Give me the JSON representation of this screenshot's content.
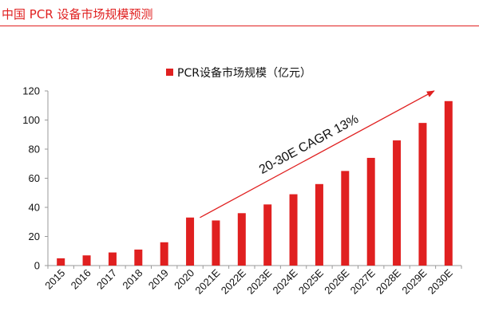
{
  "page_title": "中国 PCR 设备市场规模预测",
  "colors": {
    "bar": "#e02020",
    "title": "#e02020",
    "axis": "#9a9a9a",
    "text": "#111111"
  },
  "chart_data": {
    "type": "bar",
    "categories": [
      "2015",
      "2016",
      "2017",
      "2018",
      "2019",
      "2020",
      "2021E",
      "2022E",
      "2023E",
      "2024E",
      "2025E",
      "2026E",
      "2027E",
      "2028E",
      "2029E",
      "2030E"
    ],
    "series": [
      {
        "name": "PCR设备市场规模（亿元）",
        "values": [
          5,
          7,
          9,
          11,
          16,
          33,
          31,
          36,
          42,
          49,
          56,
          65,
          74,
          86,
          98,
          113
        ]
      }
    ],
    "ylim": [
      0,
      120
    ],
    "yticks": [
      "0",
      "20",
      "40",
      "60",
      "80",
      "100",
      "120"
    ],
    "grid": false,
    "legend": "top-center",
    "annotation": {
      "text": "20-30E CAGR 13%",
      "arrow_from_category": "2021E",
      "arrow_to_category": "2030E",
      "arrow_from_value": 33,
      "arrow_to_value": 120
    }
  }
}
